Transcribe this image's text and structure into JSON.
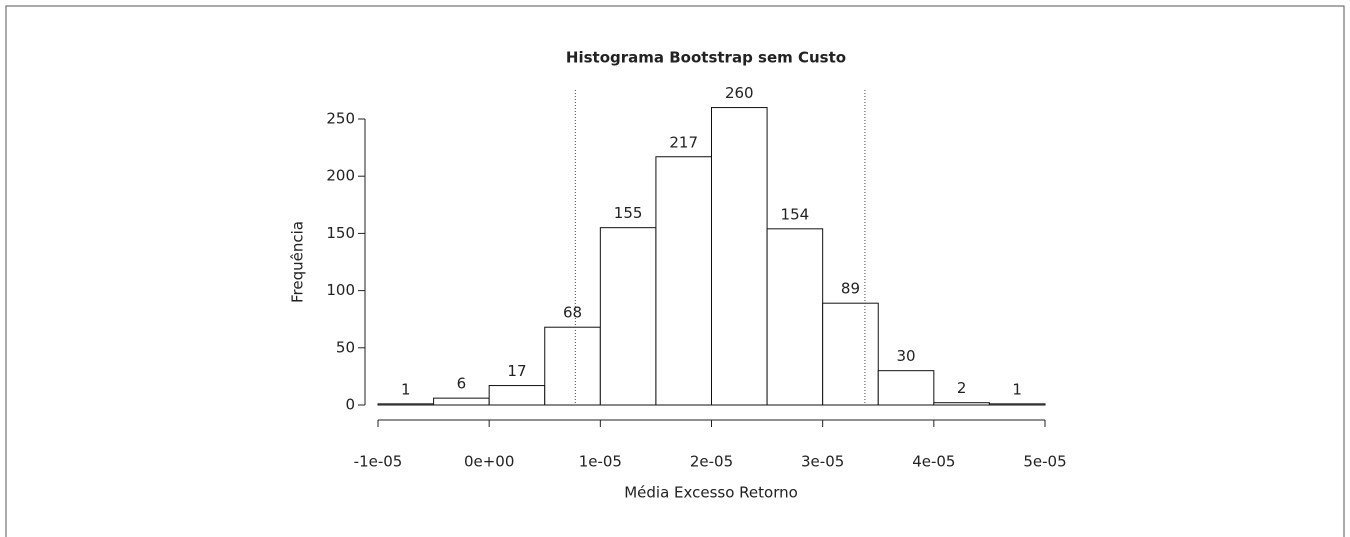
{
  "chart_data": {
    "type": "histogram",
    "title": "Histograma Bootstrap sem Custo",
    "xlabel": "Média Excesso Retorno",
    "ylabel": "Frequência",
    "bins": [
      -1e-05,
      -5e-06,
      0,
      5e-06,
      1e-05,
      1.5e-05,
      2e-05,
      2.5e-05,
      3e-05,
      3.5e-05,
      4e-05,
      4.5e-05,
      5e-05
    ],
    "values": [
      1,
      6,
      17,
      68,
      155,
      217,
      260,
      154,
      89,
      30,
      2,
      1
    ],
    "color": "#ffffff",
    "xlim": [
      -1e-05,
      5e-05
    ],
    "xticks": [
      {
        "value": -1e-05,
        "label": "-1e-05"
      },
      {
        "value": 0,
        "label": "0e+00"
      },
      {
        "value": 1e-05,
        "label": "1e-05"
      },
      {
        "value": 2e-05,
        "label": "2e-05"
      },
      {
        "value": 3e-05,
        "label": "3e-05"
      },
      {
        "value": 4e-05,
        "label": "4e-05"
      },
      {
        "value": 5e-05,
        "label": "5e-05"
      }
    ],
    "ylim": [
      0,
      250
    ],
    "yticks": [
      0,
      50,
      100,
      150,
      200,
      250
    ],
    "vlines": [
      7.75e-06,
      3.38e-05
    ]
  }
}
